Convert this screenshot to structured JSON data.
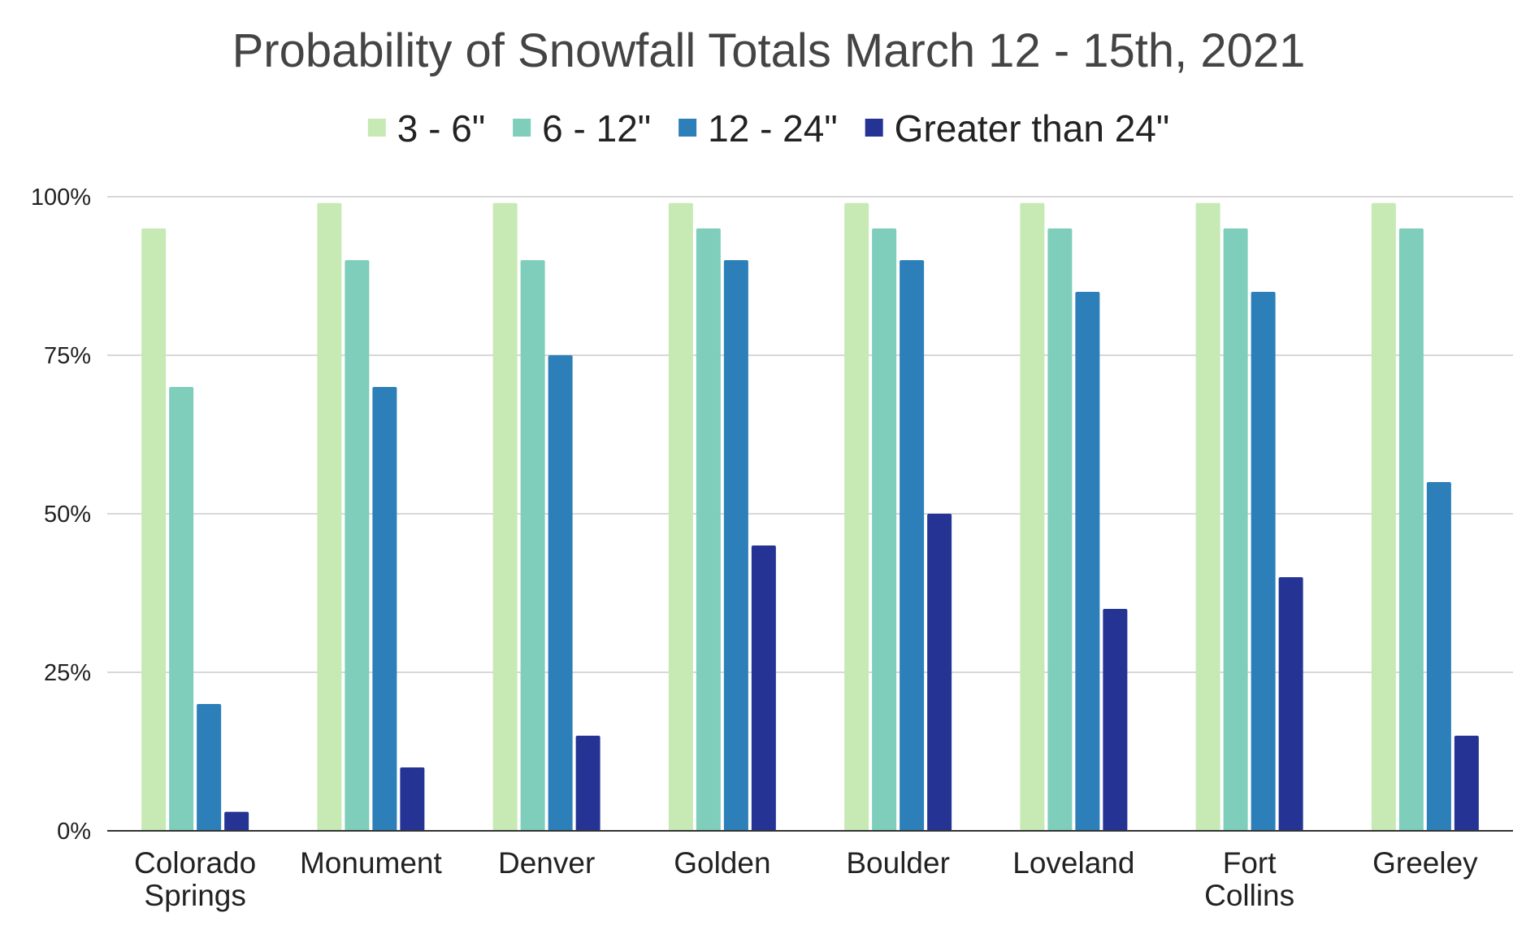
{
  "chart_data": {
    "type": "bar",
    "title": "Probability of Snowfall Totals March 12 - 15th, 2021",
    "xlabel": "",
    "ylabel": "",
    "ylim": [
      0,
      100
    ],
    "y_ticks": [
      "0%",
      "25%",
      "50%",
      "75%",
      "100%"
    ],
    "grid": true,
    "legend_position": "top",
    "categories": [
      [
        "Colorado",
        "Springs"
      ],
      [
        "Monument"
      ],
      [
        "Denver"
      ],
      [
        "Golden"
      ],
      [
        "Boulder"
      ],
      [
        "Loveland"
      ],
      [
        "Fort",
        "Collins"
      ],
      [
        "Greeley"
      ]
    ],
    "series": [
      {
        "name": "3 - 6\"",
        "color": "#c7e9b4",
        "values": [
          95,
          99,
          99,
          99,
          99,
          99,
          99,
          99
        ]
      },
      {
        "name": "6 - 12\"",
        "color": "#7fcdbb",
        "values": [
          70,
          90,
          90,
          95,
          95,
          95,
          95,
          95
        ]
      },
      {
        "name": "12 - 24\"",
        "color": "#2c7fb8",
        "values": [
          20,
          70,
          75,
          90,
          90,
          85,
          85,
          55
        ]
      },
      {
        "name": "Greater than 24\"",
        "color": "#253494",
        "values": [
          3,
          10,
          15,
          45,
          50,
          35,
          40,
          15
        ]
      }
    ]
  }
}
